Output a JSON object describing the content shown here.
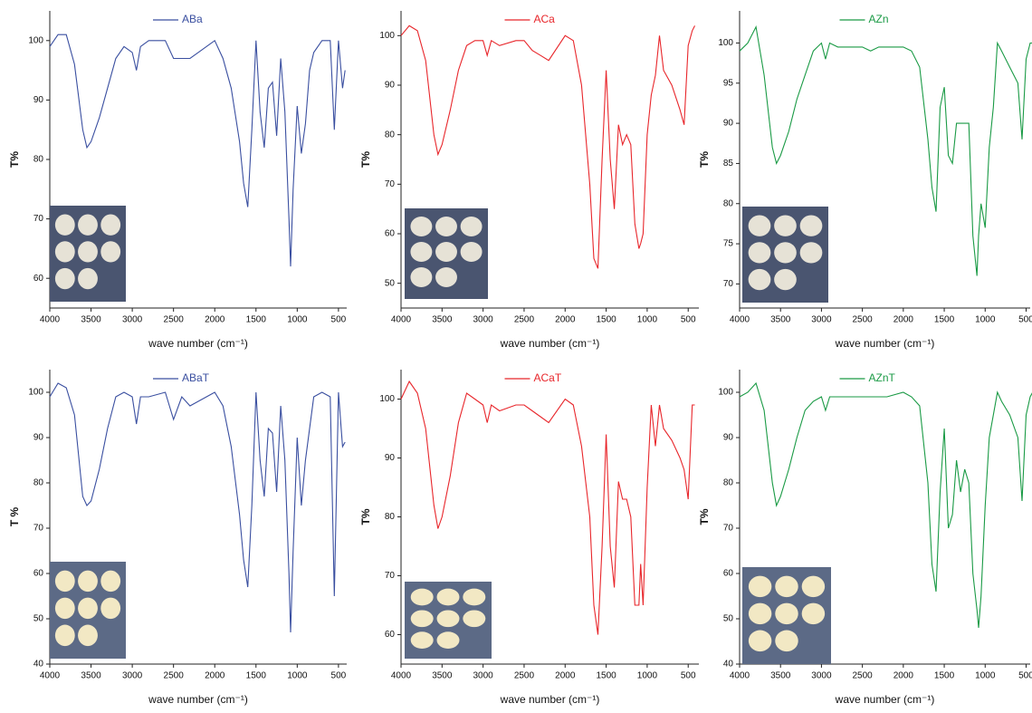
{
  "chart_data": [
    {
      "type": "line",
      "xlabel": "wave number (cm⁻¹)",
      "ylabel": "T%",
      "legend": "top",
      "x": [
        4000,
        3900,
        3800,
        3700,
        3600,
        3550,
        3500,
        3400,
        3300,
        3200,
        3100,
        3000,
        2950,
        2900,
        2800,
        2600,
        2500,
        2400,
        2300,
        2200,
        2000,
        1900,
        1800,
        1700,
        1650,
        1600,
        1550,
        1500,
        1450,
        1400,
        1350,
        1300,
        1250,
        1200,
        1150,
        1100,
        1080,
        1050,
        1000,
        950,
        900,
        850,
        800,
        700,
        600,
        550,
        500,
        450,
        420
      ],
      "series": [
        {
          "name": "ABa",
          "color": "#3a4fa0",
          "values": [
            99,
            101,
            101,
            96,
            85,
            82,
            83,
            87,
            92,
            97,
            99,
            98,
            95,
            99,
            100,
            100,
            97,
            97,
            97,
            98,
            100,
            97,
            92,
            83,
            76,
            72,
            85,
            100,
            88,
            82,
            92,
            93,
            84,
            97,
            88,
            70,
            62,
            75,
            89,
            81,
            86,
            95,
            98,
            100,
            100,
            85,
            100,
            92,
            95
          ]
        }
      ],
      "xlim": [
        4000,
        400
      ],
      "xticks": [
        4000,
        3500,
        3000,
        2500,
        2000,
        1500,
        1000,
        500
      ],
      "ylim": [
        55,
        105
      ],
      "yticks": [
        60,
        70,
        80,
        90,
        100
      ]
    },
    {
      "type": "line",
      "xlabel": "wave number (cm⁻¹)",
      "ylabel": "T%",
      "legend": "top",
      "x": [
        4000,
        3900,
        3800,
        3700,
        3600,
        3550,
        3500,
        3400,
        3300,
        3200,
        3100,
        3000,
        2950,
        2900,
        2800,
        2600,
        2500,
        2400,
        2300,
        2200,
        2000,
        1900,
        1800,
        1700,
        1650,
        1600,
        1550,
        1500,
        1450,
        1400,
        1350,
        1300,
        1250,
        1200,
        1150,
        1100,
        1080,
        1050,
        1000,
        950,
        900,
        850,
        800,
        700,
        600,
        550,
        500,
        450,
        420
      ],
      "series": [
        {
          "name": "ACa",
          "color": "#e8262b",
          "values": [
            100,
            102,
            101,
            95,
            80,
            76,
            78,
            85,
            93,
            98,
            99,
            99,
            96,
            99,
            98,
            99,
            99,
            97,
            96,
            95,
            100,
            99,
            90,
            70,
            55,
            53,
            75,
            93,
            75,
            65,
            82,
            78,
            80,
            78,
            62,
            57,
            58,
            60,
            80,
            88,
            92,
            100,
            93,
            90,
            85,
            82,
            98,
            101,
            102
          ]
        }
      ],
      "xlim": [
        4000,
        370
      ],
      "xticks": [
        4000,
        3500,
        3000,
        2500,
        2000,
        1500,
        1000,
        500
      ],
      "ylim": [
        45,
        105
      ],
      "yticks": [
        50,
        60,
        70,
        80,
        90,
        100
      ]
    },
    {
      "type": "line",
      "xlabel": "wave number (cm⁻¹)",
      "ylabel": "T%",
      "legend": "top",
      "x": [
        4000,
        3900,
        3800,
        3700,
        3600,
        3550,
        3500,
        3400,
        3300,
        3200,
        3100,
        3000,
        2950,
        2900,
        2800,
        2600,
        2500,
        2400,
        2300,
        2200,
        2000,
        1900,
        1800,
        1700,
        1650,
        1600,
        1550,
        1500,
        1450,
        1400,
        1350,
        1300,
        1250,
        1200,
        1150,
        1100,
        1080,
        1050,
        1000,
        950,
        900,
        850,
        800,
        700,
        600,
        550,
        500,
        450,
        420
      ],
      "series": [
        {
          "name": "AZn",
          "color": "#1a9a45",
          "values": [
            99,
            100,
            102,
            96,
            87,
            85,
            86,
            89,
            93,
            96,
            99,
            100,
            98,
            100,
            99.5,
            99.5,
            99.5,
            99,
            99.5,
            99.5,
            99.5,
            99,
            97,
            88,
            82,
            79,
            92,
            94.5,
            86,
            85,
            90,
            90,
            90,
            90,
            76,
            71,
            76,
            80,
            77,
            87,
            92,
            100,
            99,
            97,
            95,
            88,
            98,
            100,
            100
          ]
        }
      ],
      "xlim": [
        4000,
        450
      ],
      "xticks": [
        4000,
        3500,
        3000,
        2500,
        2000,
        1500,
        1000,
        500
      ],
      "ylim": [
        67,
        104
      ],
      "yticks": [
        70,
        75,
        80,
        85,
        90,
        95,
        100
      ]
    },
    {
      "type": "line",
      "xlabel": "wave number (cm⁻¹)",
      "ylabel": "T %",
      "legend": "top",
      "x": [
        4000,
        3900,
        3800,
        3700,
        3600,
        3550,
        3500,
        3400,
        3300,
        3200,
        3100,
        3000,
        2950,
        2900,
        2800,
        2600,
        2500,
        2400,
        2300,
        2200,
        2000,
        1900,
        1800,
        1700,
        1650,
        1600,
        1550,
        1500,
        1450,
        1400,
        1350,
        1300,
        1250,
        1200,
        1150,
        1100,
        1080,
        1050,
        1000,
        950,
        900,
        850,
        800,
        700,
        600,
        550,
        500,
        450,
        420
      ],
      "series": [
        {
          "name": "ABaT",
          "color": "#3a4fa0",
          "values": [
            99,
            102,
            101,
            95,
            77,
            75,
            76,
            83,
            92,
            99,
            100,
            99,
            93,
            99,
            99,
            100,
            94,
            99,
            97,
            98,
            100,
            97,
            88,
            73,
            63,
            57,
            75,
            100,
            85,
            77,
            92,
            91,
            78,
            97,
            85,
            60,
            47,
            65,
            90,
            75,
            85,
            92,
            99,
            100,
            99,
            55,
            100,
            88,
            89
          ]
        }
      ],
      "xlim": [
        4000,
        400
      ],
      "xticks": [
        4000,
        3500,
        3000,
        2500,
        2000,
        1500,
        1000,
        500
      ],
      "ylim": [
        40,
        105
      ],
      "yticks": [
        40,
        50,
        60,
        70,
        80,
        90,
        100
      ]
    },
    {
      "type": "line",
      "xlabel": "wave number (cm⁻¹)",
      "ylabel": "T%",
      "legend": "top",
      "x": [
        4000,
        3900,
        3800,
        3700,
        3600,
        3550,
        3500,
        3400,
        3300,
        3200,
        3100,
        3000,
        2950,
        2900,
        2800,
        2600,
        2500,
        2400,
        2300,
        2200,
        2000,
        1900,
        1800,
        1700,
        1650,
        1600,
        1550,
        1500,
        1450,
        1400,
        1350,
        1300,
        1250,
        1200,
        1150,
        1100,
        1080,
        1050,
        1000,
        950,
        900,
        850,
        800,
        700,
        600,
        550,
        500,
        450,
        420
      ],
      "series": [
        {
          "name": "ACaT",
          "color": "#e8262b",
          "values": [
            100,
            103,
            101,
            95,
            82,
            78,
            80,
            87,
            96,
            101,
            100,
            99,
            96,
            99,
            98,
            99,
            99,
            98,
            97,
            96,
            100,
            99,
            92,
            80,
            65,
            60,
            75,
            94,
            75,
            68,
            86,
            83,
            83,
            80,
            65,
            65,
            72,
            65,
            85,
            99,
            92,
            99,
            95,
            93,
            90,
            88,
            83,
            99,
            99
          ]
        }
      ],
      "xlim": [
        4000,
        370
      ],
      "xticks": [
        4000,
        3500,
        3000,
        2500,
        2000,
        1500,
        1000,
        500
      ],
      "ylim": [
        55,
        105
      ],
      "yticks": [
        60,
        70,
        80,
        90,
        100
      ]
    },
    {
      "type": "line",
      "xlabel": "wave number (cm⁻¹)",
      "ylabel": "T%",
      "legend": "top",
      "x": [
        4000,
        3900,
        3800,
        3700,
        3600,
        3550,
        3500,
        3400,
        3300,
        3200,
        3100,
        3000,
        2950,
        2900,
        2800,
        2600,
        2500,
        2400,
        2300,
        2200,
        2000,
        1900,
        1800,
        1700,
        1650,
        1600,
        1550,
        1500,
        1450,
        1400,
        1350,
        1300,
        1250,
        1200,
        1150,
        1100,
        1080,
        1050,
        1000,
        950,
        900,
        850,
        800,
        700,
        600,
        550,
        500,
        450,
        420
      ],
      "series": [
        {
          "name": "AZnT",
          "color": "#1a9a45",
          "values": [
            99,
            100,
            102,
            96,
            80,
            75,
            77,
            83,
            90,
            96,
            98,
            99,
            96,
            99,
            99,
            99,
            99,
            99,
            99,
            99,
            100,
            99,
            97,
            80,
            62,
            56,
            78,
            92,
            70,
            73,
            85,
            78,
            83,
            80,
            60,
            52,
            48,
            55,
            75,
            90,
            95,
            100,
            98,
            95,
            90,
            76,
            95,
            99,
            100
          ]
        }
      ],
      "xlim": [
        4000,
        450
      ],
      "xticks": [
        4000,
        3500,
        3000,
        2500,
        2000,
        1500,
        1000,
        500
      ],
      "ylim": [
        40,
        105
      ],
      "yticks": [
        40,
        50,
        60,
        70,
        80,
        90,
        100
      ]
    }
  ]
}
